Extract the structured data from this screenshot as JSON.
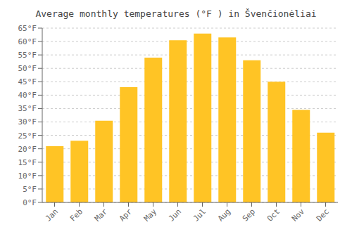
{
  "chart_data": {
    "type": "bar",
    "title": "Average monthly temperatures (°F ) in Švenčionėliai",
    "categories": [
      "Jan",
      "Feb",
      "Mar",
      "Apr",
      "May",
      "Jun",
      "Jul",
      "Aug",
      "Sep",
      "Oct",
      "Nov",
      "Dec"
    ],
    "values": [
      21,
      23,
      30.5,
      43,
      54,
      60.5,
      63,
      61.5,
      53,
      45,
      34.5,
      26
    ],
    "color": "#FFC425",
    "ylim": [
      0,
      65
    ],
    "yticks": [
      {
        "value": 0,
        "label": "0°F"
      },
      {
        "value": 5,
        "label": "5°F"
      },
      {
        "value": 10,
        "label": "10°F"
      },
      {
        "value": 15,
        "label": "15°F"
      },
      {
        "value": 20,
        "label": "20°F"
      },
      {
        "value": 25,
        "label": "25°F"
      },
      {
        "value": 30,
        "label": "30°F"
      },
      {
        "value": 35,
        "label": "35°F"
      },
      {
        "value": 40,
        "label": "40°F"
      },
      {
        "value": 45,
        "label": "45°F"
      },
      {
        "value": 50,
        "label": "50°F"
      },
      {
        "value": 55,
        "label": "55°F"
      },
      {
        "value": 60,
        "label": "60°F"
      },
      {
        "value": 65,
        "label": "65°F"
      }
    ],
    "grid": true
  }
}
